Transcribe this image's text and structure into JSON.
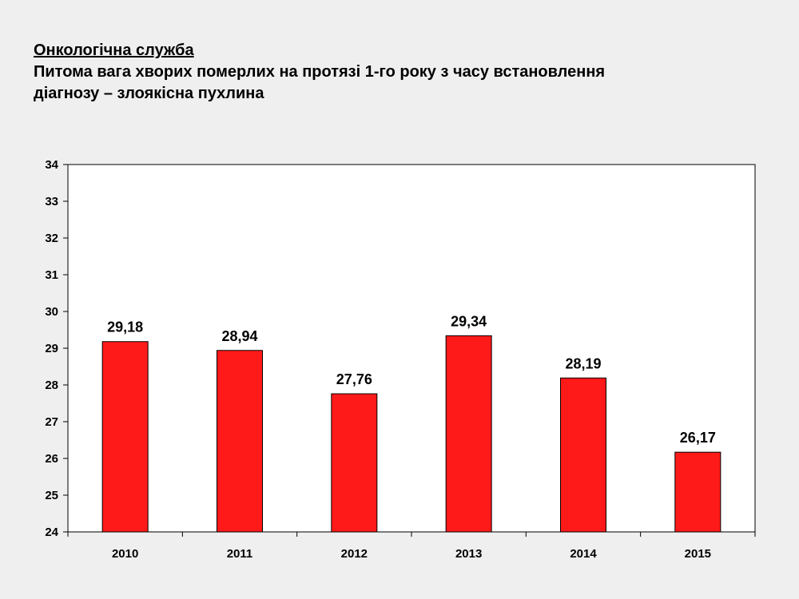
{
  "heading": {
    "line1": "Онкологічна служба",
    "line2": "Питома вага хворих померлих на протязі 1-го року  з часу встановлення",
    "line3": "діагнозу – злоякісна пухлина"
  },
  "chart_data": {
    "type": "bar",
    "categories": [
      "2010",
      "2011",
      "2012",
      "2013",
      "2014",
      "2015"
    ],
    "values": [
      29.18,
      28.94,
      27.76,
      29.34,
      28.19,
      26.17
    ],
    "data_labels": [
      "29,18",
      "28,94",
      "27,76",
      "29,34",
      "28,19",
      "26,17"
    ],
    "ylim": [
      24,
      34
    ],
    "yticks": [
      "24",
      "25",
      "26",
      "27",
      "28",
      "29",
      "30",
      "31",
      "32",
      "33",
      "34"
    ],
    "bar_color": "#ff1a1a",
    "grid": false,
    "legend": "none"
  }
}
